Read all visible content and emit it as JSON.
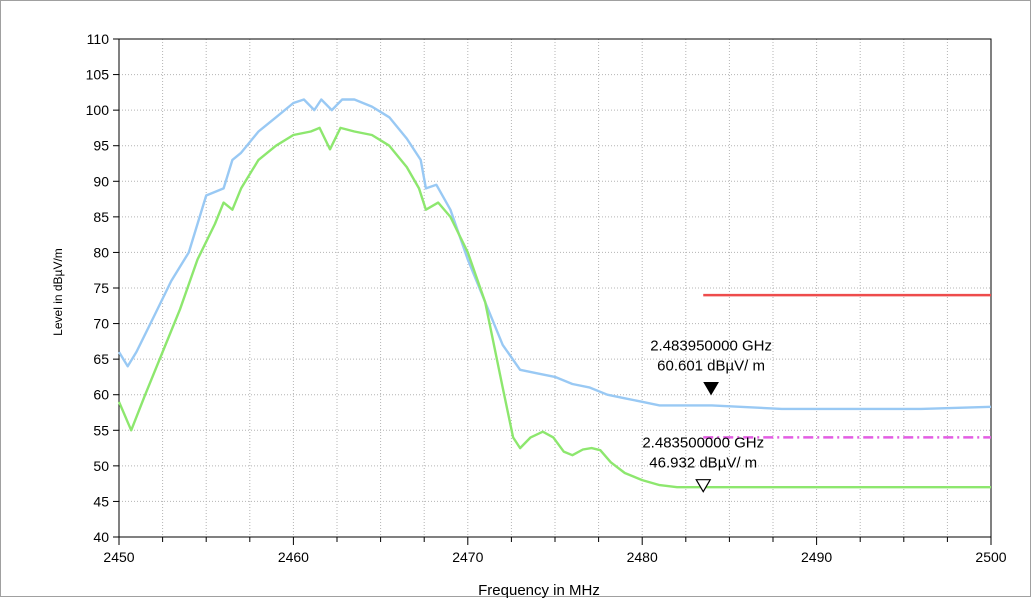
{
  "chart_data": {
    "type": "line",
    "xlabel": "Frequency in MHz",
    "ylabel": "Level in dBµV/m",
    "xlim": [
      2450,
      2500
    ],
    "ylim": [
      40,
      110
    ],
    "x_ticks": [
      "2450",
      "2460",
      "2470",
      "2480",
      "2490",
      "2500"
    ],
    "y_ticks": [
      "40",
      "45",
      "50",
      "55",
      "60",
      "65",
      "70",
      "75",
      "80",
      "85",
      "90",
      "95",
      "100",
      "105",
      "110"
    ],
    "grid": true,
    "series": [
      {
        "color": "#99c9f4",
        "points": [
          [
            2450.0,
            66
          ],
          [
            2450.5,
            64
          ],
          [
            2451,
            66
          ],
          [
            2452,
            71
          ],
          [
            2453,
            76
          ],
          [
            2454,
            80
          ],
          [
            2455,
            88
          ],
          [
            2456,
            89
          ],
          [
            2456.5,
            93
          ],
          [
            2457,
            94
          ],
          [
            2458,
            97
          ],
          [
            2459,
            99
          ],
          [
            2460,
            101
          ],
          [
            2460.6,
            101.5
          ],
          [
            2461.2,
            100
          ],
          [
            2461.6,
            101.5
          ],
          [
            2462.2,
            100
          ],
          [
            2462.8,
            101.5
          ],
          [
            2463.5,
            101.5
          ],
          [
            2464.5,
            100.5
          ],
          [
            2465.5,
            99
          ],
          [
            2466.5,
            96
          ],
          [
            2467.3,
            93
          ],
          [
            2467.6,
            89
          ],
          [
            2468.2,
            89.5
          ],
          [
            2469,
            86
          ],
          [
            2470,
            79
          ],
          [
            2471,
            73
          ],
          [
            2472,
            67
          ],
          [
            2473,
            63.5
          ],
          [
            2474,
            63
          ],
          [
            2475,
            62.5
          ],
          [
            2476,
            61.5
          ],
          [
            2477,
            61
          ],
          [
            2478,
            60
          ],
          [
            2479,
            59.5
          ],
          [
            2480,
            59
          ],
          [
            2481,
            58.5
          ],
          [
            2484,
            58.5
          ],
          [
            2488,
            58
          ],
          [
            2492,
            58
          ],
          [
            2496,
            58
          ],
          [
            2500,
            58.3
          ]
        ]
      },
      {
        "color": "#8de76e",
        "points": [
          [
            2450.0,
            59
          ],
          [
            2450.7,
            55
          ],
          [
            2451.5,
            60
          ],
          [
            2452.5,
            66
          ],
          [
            2453.5,
            72
          ],
          [
            2454.5,
            79
          ],
          [
            2455.5,
            84
          ],
          [
            2456,
            87
          ],
          [
            2456.5,
            86
          ],
          [
            2457,
            89
          ],
          [
            2458,
            93
          ],
          [
            2459,
            95
          ],
          [
            2460,
            96.5
          ],
          [
            2461,
            97
          ],
          [
            2461.5,
            97.5
          ],
          [
            2462.1,
            94.5
          ],
          [
            2462.7,
            97.5
          ],
          [
            2463.5,
            97
          ],
          [
            2464.5,
            96.5
          ],
          [
            2465.5,
            95
          ],
          [
            2466.5,
            92
          ],
          [
            2467.2,
            89
          ],
          [
            2467.6,
            86
          ],
          [
            2468.3,
            87
          ],
          [
            2469,
            85
          ],
          [
            2470,
            80
          ],
          [
            2471,
            73
          ],
          [
            2472,
            61
          ],
          [
            2472.6,
            54
          ],
          [
            2473,
            52.5
          ],
          [
            2473.6,
            54
          ],
          [
            2474.3,
            54.8
          ],
          [
            2474.9,
            54
          ],
          [
            2475.5,
            52
          ],
          [
            2476,
            51.5
          ],
          [
            2476.6,
            52.3
          ],
          [
            2477.1,
            52.5
          ],
          [
            2477.6,
            52.2
          ],
          [
            2478.2,
            50.5
          ],
          [
            2479,
            49
          ],
          [
            2480,
            48
          ],
          [
            2481,
            47.3
          ],
          [
            2482,
            47
          ],
          [
            2484,
            47
          ],
          [
            2490,
            47
          ],
          [
            2495,
            47
          ],
          [
            2500,
            47
          ]
        ]
      }
    ],
    "limit_lines": [
      {
        "color": "#ee4c4c",
        "style": "solid",
        "x": [
          2483.5,
          2500
        ],
        "y": 74
      },
      {
        "color": "#e35ee3",
        "style": "dash-dot",
        "x": [
          2483.5,
          2500
        ],
        "y": 54
      }
    ],
    "markers": [
      {
        "x": 2483.95,
        "y": 60.601,
        "line1": "2.483950000 GHz",
        "line2": "60.601  dBµV/ m",
        "symbol": "filled-triangle"
      },
      {
        "x": 2483.5,
        "y": 46.932,
        "line1": "2.483500000 GHz",
        "line2": "46.932  dBµV/ m",
        "symbol": "open-triangle"
      }
    ]
  }
}
